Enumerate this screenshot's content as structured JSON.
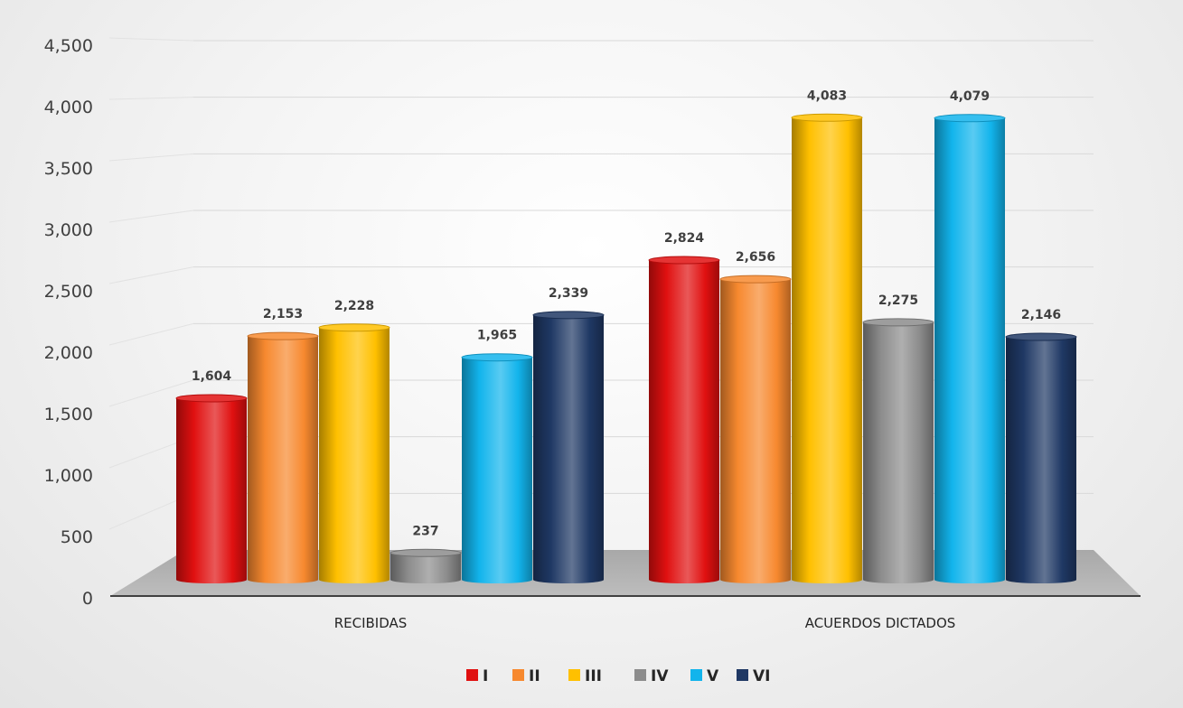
{
  "chart_data": {
    "type": "bar",
    "title": "",
    "xlabel": "",
    "ylabel": "",
    "categories": [
      "RECIBIDAS",
      "ACUERDOS DICTADOS"
    ],
    "series": [
      {
        "name": "I",
        "values": [
          1604,
          2824
        ],
        "color": "#e01010"
      },
      {
        "name": "II",
        "values": [
          2153,
          2656
        ],
        "color": "#f7892f"
      },
      {
        "name": "III",
        "values": [
          2228,
          4083
        ],
        "color": "#ffc000"
      },
      {
        "name": "IV",
        "values": [
          237,
          2275
        ],
        "color": "#8c8c8c"
      },
      {
        "name": "V",
        "values": [
          1965,
          4079
        ],
        "color": "#12b4ec"
      },
      {
        "name": "VI",
        "values": [
          2339,
          2146
        ],
        "color": "#1f3864"
      }
    ],
    "data_labels": {
      "RECIBIDAS": [
        "1,604",
        "2,153",
        "2,228",
        "237",
        "1,965",
        "2,339"
      ],
      "ACUERDOS DICTADOS": [
        "2,824",
        "2,656",
        "4,083",
        "2,275",
        "4,079",
        "2,146"
      ]
    },
    "yticks": [
      "0",
      "500",
      "1,000",
      "1,500",
      "2,000",
      "2,500",
      "3,000",
      "3,500",
      "4,000",
      "4,500"
    ],
    "ylim": [
      0,
      4500
    ],
    "grid": true,
    "legend_position": "bottom",
    "style": "3d-cylinder"
  }
}
